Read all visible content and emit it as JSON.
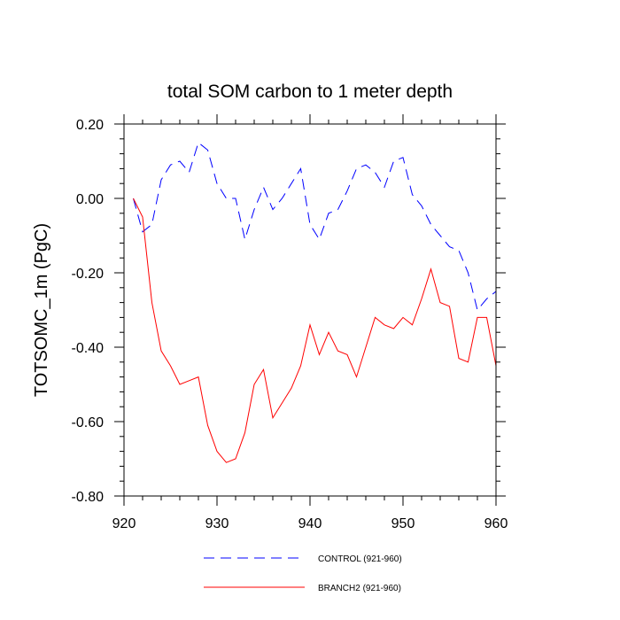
{
  "chart_data": {
    "type": "line",
    "title": "total SOM carbon to 1 meter depth",
    "xlabel": "",
    "ylabel": "TOTSOMC_1m  (PgC)",
    "xlim": [
      920,
      960
    ],
    "ylim": [
      -0.8,
      0.2
    ],
    "x_ticks": [
      920,
      930,
      940,
      950,
      960
    ],
    "x_tick_labels": [
      "920",
      "930",
      "940",
      "950",
      "960"
    ],
    "y_ticks": [
      0.2,
      0.0,
      -0.2,
      -0.4,
      -0.6,
      -0.8
    ],
    "y_tick_labels": [
      "0.20",
      "0.00",
      "-0.20",
      "-0.40",
      "-0.60",
      "-0.80"
    ],
    "x": [
      921,
      922,
      923,
      924,
      925,
      926,
      927,
      928,
      929,
      930,
      931,
      932,
      933,
      934,
      935,
      936,
      937,
      938,
      939,
      940,
      941,
      942,
      943,
      944,
      945,
      946,
      947,
      948,
      949,
      950,
      951,
      952,
      953,
      954,
      955,
      956,
      957,
      958,
      959,
      960
    ],
    "series": [
      {
        "name": "CONTROL (921-960)",
        "color": "#0000ff",
        "dash": "dashed",
        "values": [
          0.0,
          -0.09,
          -0.07,
          0.05,
          0.09,
          0.1,
          0.07,
          0.15,
          0.13,
          0.04,
          0.0,
          0.0,
          -0.11,
          -0.03,
          0.03,
          -0.03,
          0.0,
          0.04,
          0.08,
          -0.07,
          -0.11,
          -0.04,
          -0.03,
          0.02,
          0.08,
          0.09,
          0.07,
          0.03,
          0.1,
          0.11,
          0.01,
          -0.02,
          -0.07,
          -0.1,
          -0.13,
          -0.14,
          -0.2,
          -0.3,
          -0.27,
          -0.25
        ]
      },
      {
        "name": "BRANCH2 (921-960)",
        "color": "#ff0000",
        "dash": "solid",
        "values": [
          0.0,
          -0.05,
          -0.28,
          -0.41,
          -0.45,
          -0.5,
          -0.49,
          -0.48,
          -0.61,
          -0.68,
          -0.71,
          -0.7,
          -0.63,
          -0.5,
          -0.46,
          -0.59,
          -0.55,
          -0.51,
          -0.45,
          -0.34,
          -0.42,
          -0.36,
          -0.41,
          -0.42,
          -0.48,
          -0.4,
          -0.32,
          -0.34,
          -0.35,
          -0.32,
          -0.34,
          -0.27,
          -0.19,
          -0.28,
          -0.29,
          -0.43,
          -0.44,
          -0.32,
          -0.32,
          -0.45
        ]
      }
    ],
    "legend": [
      "CONTROL (921-960)",
      "BRANCH2 (921-960)"
    ],
    "legend_position": "bottom",
    "grid": false
  }
}
